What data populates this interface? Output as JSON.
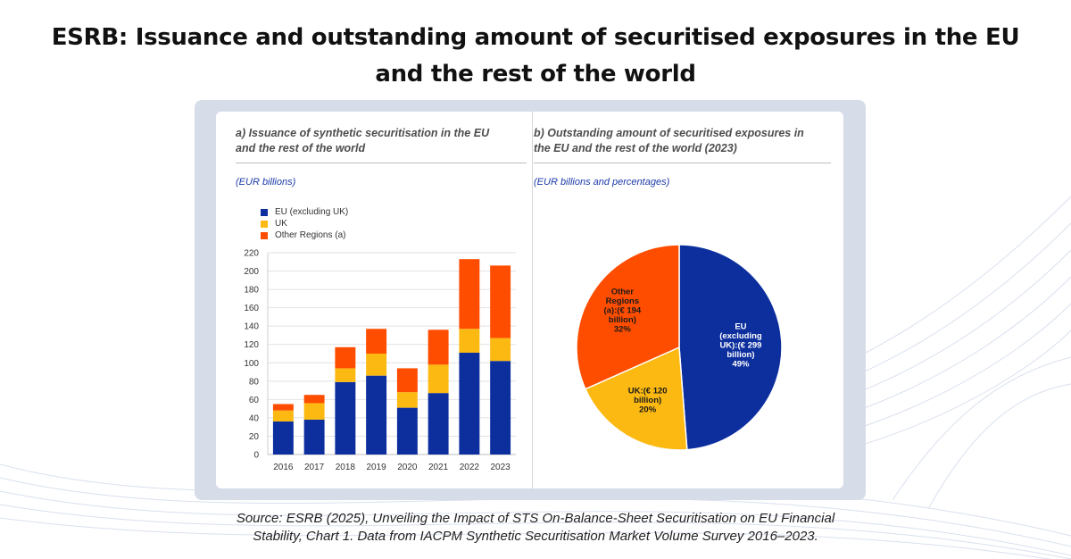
{
  "title": "ESRB: Issuance and outstanding amount of securitised exposures in the EU and the rest of the world",
  "title_lines": [
    "ESRB: Issuance and outstanding amount of securitised exposures in the EU",
    "and the rest of the world"
  ],
  "colors": {
    "eu": "#0d2f9e",
    "uk": "#fbb912",
    "other": "#ff4d00",
    "accent": "#1c3aa8"
  },
  "panel_a": {
    "title_lines": [
      "a) Issuance of synthetic securitisation in the EU",
      "and the rest of the world"
    ],
    "unit": "(EUR billions)"
  },
  "panel_b": {
    "title_lines": [
      "b) Outstanding amount of securitised exposures in",
      "the EU and the rest of the world (2023)"
    ],
    "unit": "(EUR billions and percentages)"
  },
  "legend": {
    "items": [
      "EU (excluding UK)",
      "UK",
      "Other Regions (a)"
    ]
  },
  "chart_data": [
    {
      "type": "bar",
      "stacked": true,
      "title": "a) Issuance of synthetic securitisation in the EU and the rest of the world",
      "ylabel": "(EUR billions)",
      "categories": [
        "2016",
        "2017",
        "2018",
        "2019",
        "2020",
        "2021",
        "2022",
        "2023"
      ],
      "series": [
        {
          "name": "EU (excluding UK)",
          "values": [
            36,
            38,
            79,
            86,
            51,
            67,
            111,
            102
          ]
        },
        {
          "name": "UK",
          "values": [
            12,
            18,
            15,
            24,
            17,
            31,
            26,
            25
          ]
        },
        {
          "name": "Other Regions (a)",
          "values": [
            7,
            9,
            23,
            27,
            26,
            38,
            76,
            79
          ]
        }
      ],
      "ylim": [
        0,
        220
      ],
      "yticks": [
        "0",
        "20",
        "40",
        "60",
        "80",
        "100",
        "120",
        "140",
        "160",
        "180",
        "200",
        "220"
      ],
      "grid": true,
      "legend": "top-left"
    },
    {
      "type": "pie",
      "title": "b) Outstanding amount of securitised exposures in the EU and the rest of the world (2023)",
      "unit": "(EUR billions and percentages)",
      "slices": [
        {
          "name": "EU (excluding UK)",
          "value": 299,
          "percent": 49,
          "label_lines": [
            "EU",
            "(excluding",
            "UK):(€ 299",
            "billion)",
            "49%"
          ]
        },
        {
          "name": "UK",
          "value": 120,
          "percent": 20,
          "label_lines": [
            "UK:(€ 120",
            "billion)",
            "20%"
          ]
        },
        {
          "name": "Other Regions (a)",
          "value": 194,
          "percent": 32,
          "label_lines": [
            "Other",
            "Regions",
            "(a):(€ 194",
            "billion)",
            "32%"
          ]
        }
      ]
    }
  ],
  "source_lines": [
    "Source: ESRB (2025), Unveiling the Impact of STS On-Balance-Sheet Securitisation on EU Financial",
    "Stability, Chart 1. Data from IACPM Synthetic Securitisation Market Volume Survey 2016–2023."
  ]
}
